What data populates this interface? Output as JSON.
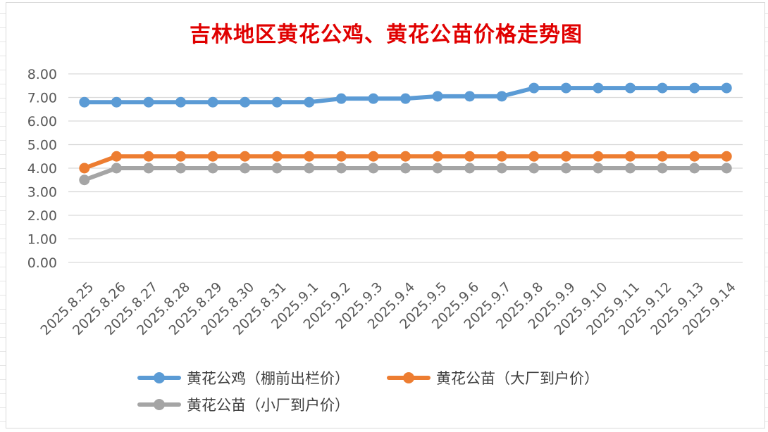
{
  "chart_data": {
    "type": "line",
    "title": "吉林地区黄花公鸡、黄花公苗价格走势图",
    "title_color": "#e00000",
    "categories": [
      "2025.8.25",
      "2025.8.26",
      "2025.8.27",
      "2025.8.28",
      "2025.8.29",
      "2025.8.30",
      "2025.8.31",
      "2025.9.1",
      "2025.9.2",
      "2025.9.3",
      "2025.9.4",
      "2025.9.5",
      "2025.9.6",
      "2025.9.7",
      "2025.9.8",
      "2025.9.9",
      "2025.9.10",
      "2025.9.11",
      "2025.9.12",
      "2025.9.13",
      "2025.9.14"
    ],
    "series": [
      {
        "name": "黄花公鸡（棚前出栏价）",
        "color": "#5b9bd5",
        "values": [
          6.8,
          6.8,
          6.8,
          6.8,
          6.8,
          6.8,
          6.8,
          6.8,
          6.95,
          6.95,
          6.95,
          7.05,
          7.05,
          7.05,
          7.4,
          7.4,
          7.4,
          7.4,
          7.4,
          7.4,
          7.4
        ]
      },
      {
        "name": "黄花公苗（大厂到户价）",
        "color": "#ed7d31",
        "values": [
          4.0,
          4.5,
          4.5,
          4.5,
          4.5,
          4.5,
          4.5,
          4.5,
          4.5,
          4.5,
          4.5,
          4.5,
          4.5,
          4.5,
          4.5,
          4.5,
          4.5,
          4.5,
          4.5,
          4.5,
          4.5
        ]
      },
      {
        "name": "黄花公苗（小厂到户价）",
        "color": "#a5a5a5",
        "values": [
          3.5,
          4.0,
          4.0,
          4.0,
          4.0,
          4.0,
          4.0,
          4.0,
          4.0,
          4.0,
          4.0,
          4.0,
          4.0,
          4.0,
          4.0,
          4.0,
          4.0,
          4.0,
          4.0,
          4.0,
          4.0
        ]
      }
    ],
    "y_ticks": [
      "0.00",
      "1.00",
      "2.00",
      "3.00",
      "4.00",
      "5.00",
      "6.00",
      "7.00",
      "8.00"
    ],
    "ylim": [
      0,
      8
    ],
    "grid": true,
    "legend_position": "bottom"
  }
}
